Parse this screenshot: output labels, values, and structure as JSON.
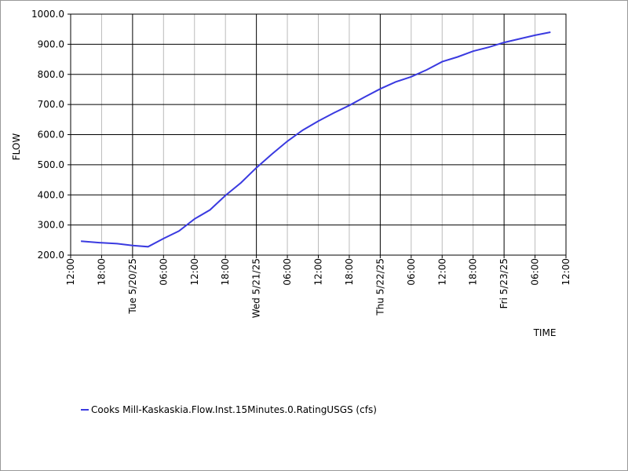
{
  "chart_data": {
    "type": "line",
    "x_label": "TIME",
    "y_label": "FLOW",
    "x": [
      "2025-05-19T14:00",
      "2025-05-19T18:00",
      "2025-05-19T21:00",
      "2025-05-20T00:00",
      "2025-05-20T03:00",
      "2025-05-20T06:00",
      "2025-05-20T09:00",
      "2025-05-20T12:00",
      "2025-05-20T15:00",
      "2025-05-20T18:00",
      "2025-05-20T21:00",
      "2025-05-21T00:00",
      "2025-05-21T03:00",
      "2025-05-21T06:00",
      "2025-05-21T09:00",
      "2025-05-21T12:00",
      "2025-05-21T15:00",
      "2025-05-21T18:00",
      "2025-05-21T21:00",
      "2025-05-22T00:00",
      "2025-05-22T03:00",
      "2025-05-22T06:00",
      "2025-05-22T09:00",
      "2025-05-22T12:00",
      "2025-05-22T15:00",
      "2025-05-22T18:00",
      "2025-05-22T21:00",
      "2025-05-23T00:00",
      "2025-05-23T03:00",
      "2025-05-23T06:00",
      "2025-05-23T09:00"
    ],
    "series": [
      {
        "name": "Cooks Mill-Kaskaskia.Flow.Inst.15Minutes.0.RatingUSGS (cfs)",
        "color": "#3a3ae0",
        "values": [
          246,
          241,
          238,
          232,
          228,
          255,
          280,
          320,
          350,
          398,
          440,
          490,
          535,
          578,
          615,
          645,
          672,
          697,
          725,
          752,
          775,
          792,
          815,
          842,
          858,
          877,
          890,
          906,
          918,
          930,
          940
        ]
      }
    ],
    "xlim": [
      "2025-05-19T12:00",
      "2025-05-23T12:00"
    ],
    "xticks": [
      {
        "value": "2025-05-19T12:00",
        "label": "12:00"
      },
      {
        "value": "2025-05-19T18:00",
        "label": "18:00"
      },
      {
        "value": "2025-05-20T00:00",
        "label": "Tue 5/20/25"
      },
      {
        "value": "2025-05-20T06:00",
        "label": "06:00"
      },
      {
        "value": "2025-05-20T12:00",
        "label": "12:00"
      },
      {
        "value": "2025-05-20T18:00",
        "label": "18:00"
      },
      {
        "value": "2025-05-21T00:00",
        "label": "Wed 5/21/25"
      },
      {
        "value": "2025-05-21T06:00",
        "label": "06:00"
      },
      {
        "value": "2025-05-21T12:00",
        "label": "12:00"
      },
      {
        "value": "2025-05-21T18:00",
        "label": "18:00"
      },
      {
        "value": "2025-05-22T00:00",
        "label": "Thu 5/22/25"
      },
      {
        "value": "2025-05-22T06:00",
        "label": "06:00"
      },
      {
        "value": "2025-05-22T12:00",
        "label": "12:00"
      },
      {
        "value": "2025-05-22T18:00",
        "label": "18:00"
      },
      {
        "value": "2025-05-23T00:00",
        "label": "Fri 5/23/25"
      },
      {
        "value": "2025-05-23T06:00",
        "label": "06:00"
      },
      {
        "value": "2025-05-23T12:00",
        "label": "12:00"
      }
    ],
    "ylim": [
      200,
      1000
    ],
    "yticks": [
      {
        "value": 200,
        "label": "200.0"
      },
      {
        "value": 300,
        "label": "300.0"
      },
      {
        "value": 400,
        "label": "400.0"
      },
      {
        "value": 500,
        "label": "500.0"
      },
      {
        "value": 600,
        "label": "600.0"
      },
      {
        "value": 700,
        "label": "700.0"
      },
      {
        "value": 800,
        "label": "800.0"
      },
      {
        "value": 900,
        "label": "900.0"
      },
      {
        "value": 1000,
        "label": "1000.0"
      }
    ],
    "grid": true,
    "legend": "bottom"
  }
}
